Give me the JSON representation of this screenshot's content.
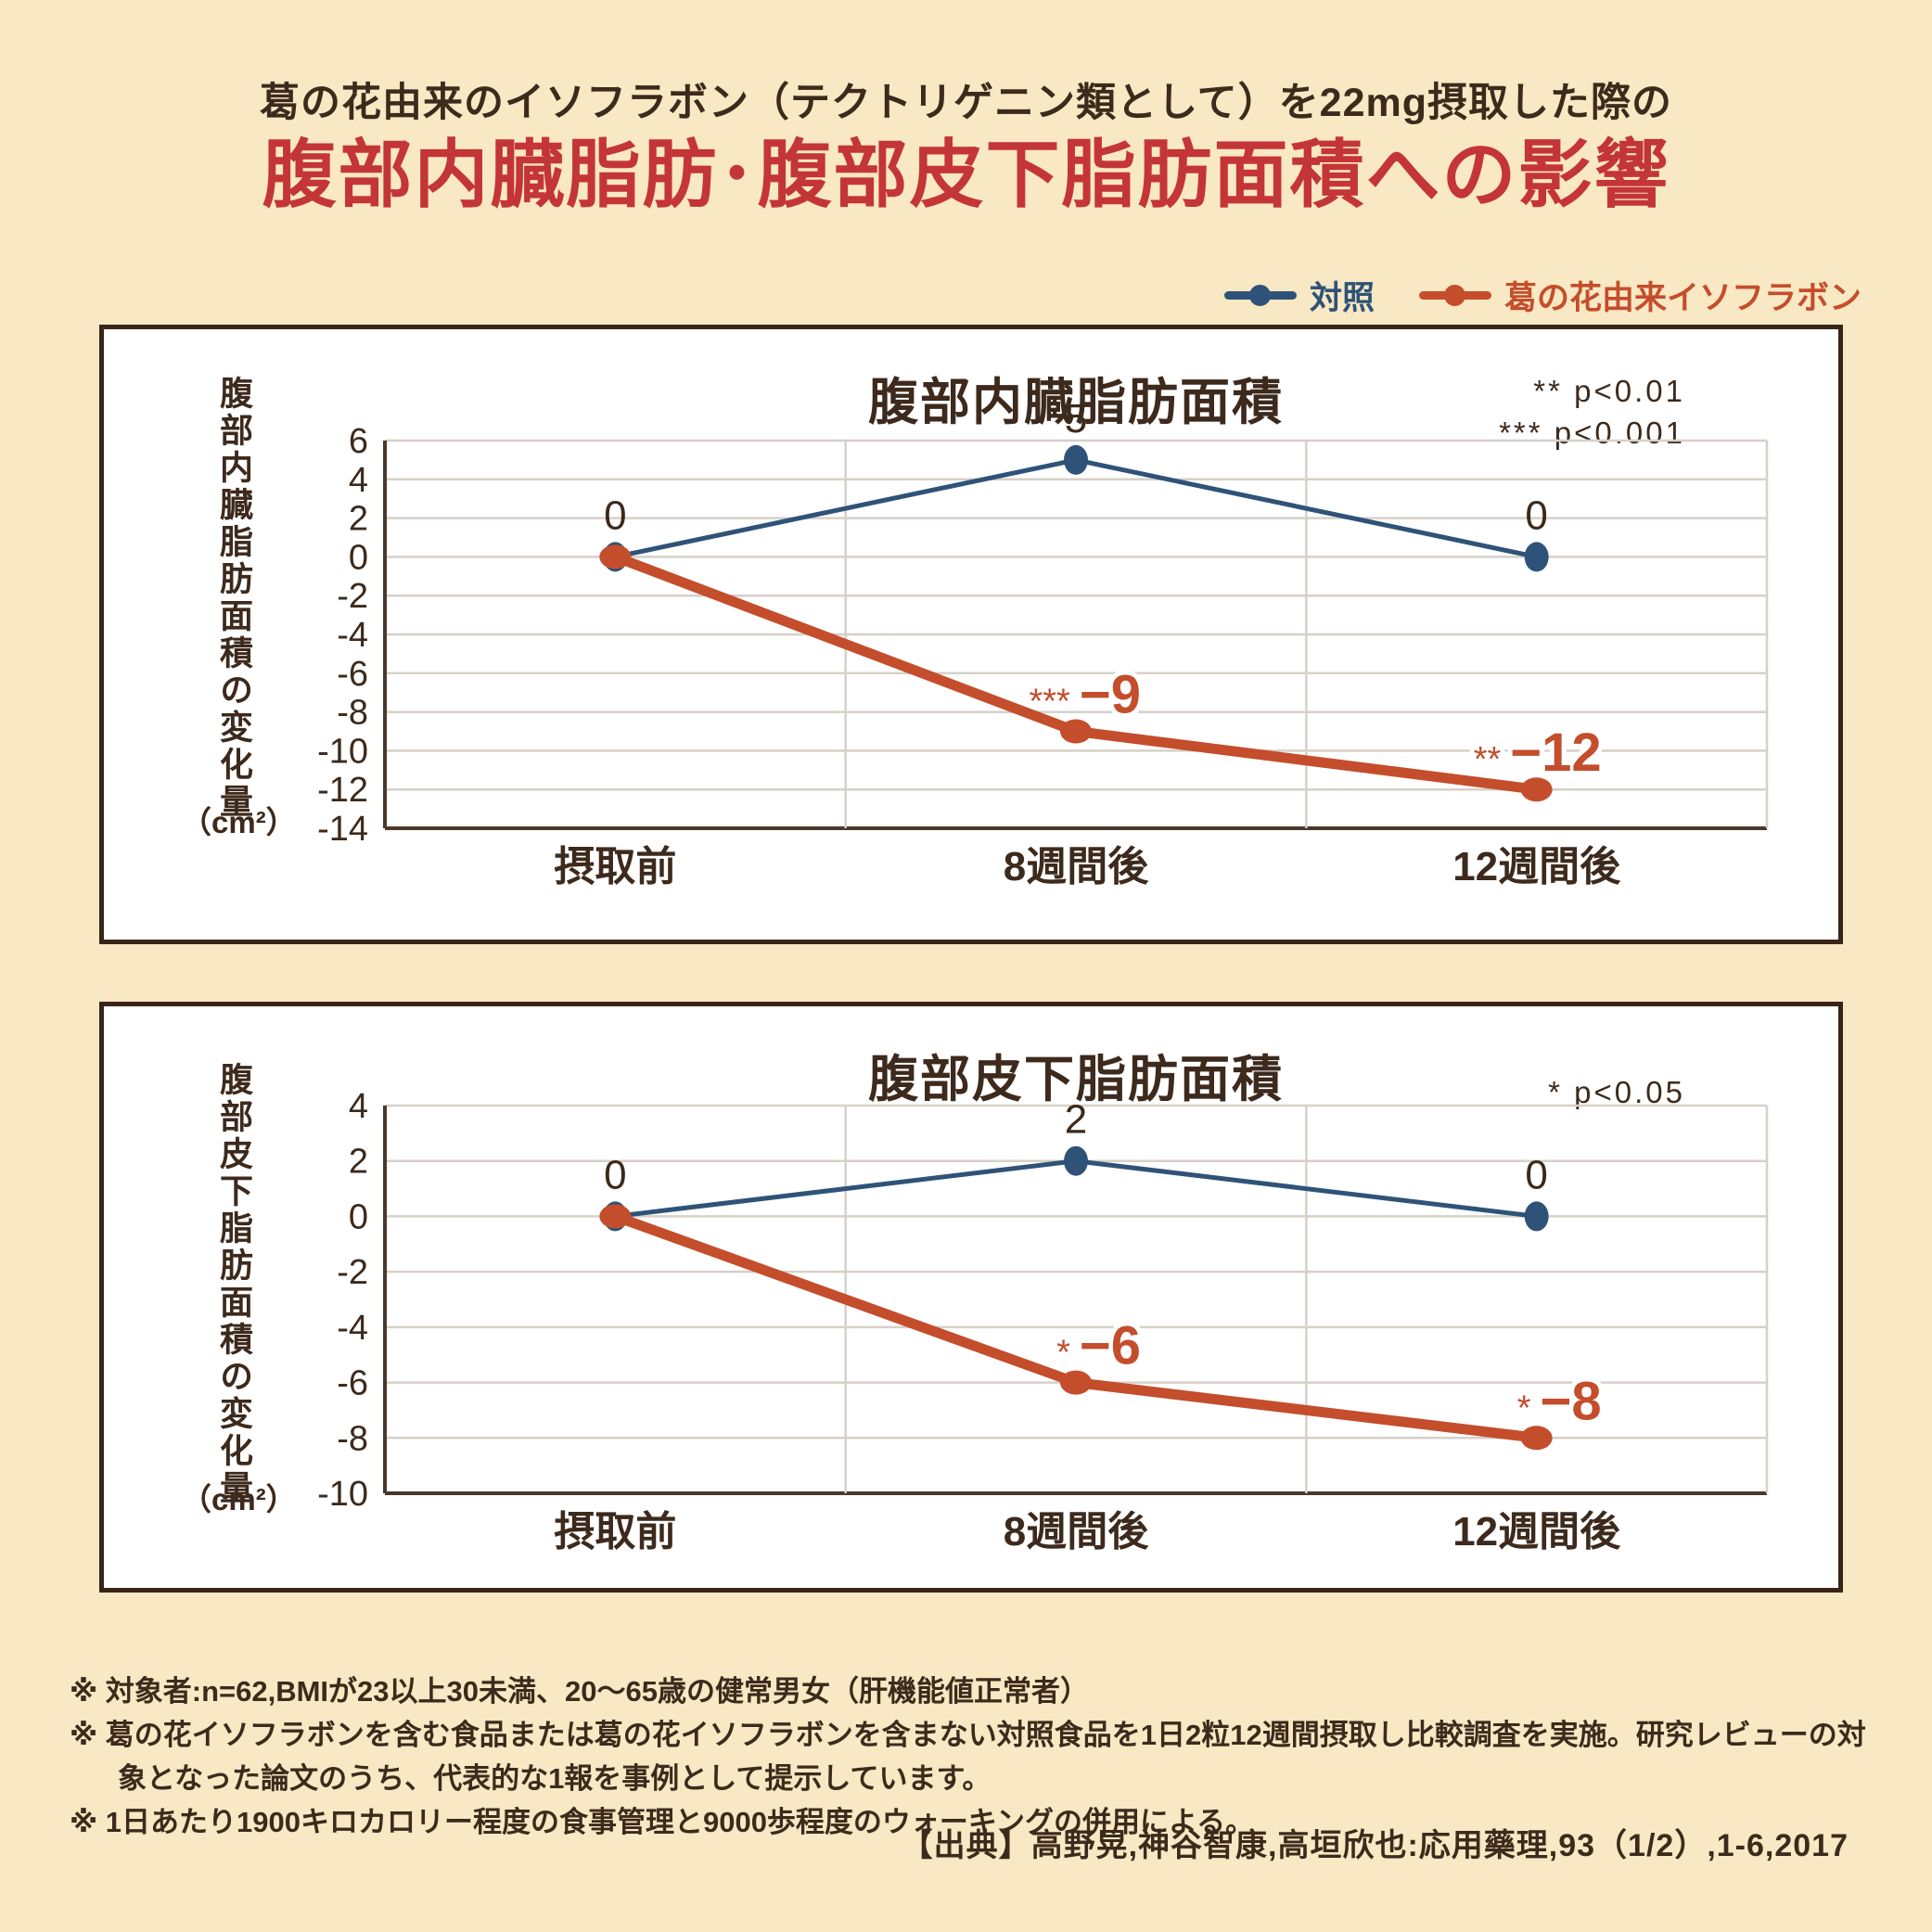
{
  "page": {
    "subtitle": "葛の花由来のイソフラボン（テクトリゲニン類として）を22mg摂取した際の",
    "title": "腹部内臓脂肪･腹部皮下脂肪面積への影響"
  },
  "colors": {
    "background": "#f8e8c3",
    "panel_border": "#3a2418",
    "dark_text": "#3d2a1c",
    "title_red": "#c43537",
    "control_navy": "#2f5378",
    "isoflavone_red": "#c44d2c",
    "gridline": "#d6d0c8",
    "axis": "#4a382c"
  },
  "legend": {
    "series": [
      {
        "label": "対照",
        "color": "#2f5378"
      },
      {
        "label": "葛の花由来イソフラボン",
        "color": "#c44d2c"
      }
    ]
  },
  "chart_data": [
    {
      "type": "line",
      "title": "腹部内臓脂肪面積",
      "ylabel": "腹部内臓脂肪面積の変化量",
      "ylabel_unit": "（cm²）",
      "categories": [
        "摂取前",
        "8週間後",
        "12週間後"
      ],
      "ylim": [
        -14,
        6
      ],
      "ytick_step": 2,
      "grid": true,
      "legend_position": "top-right-above-panels",
      "pvalues": [
        "** p<0.01",
        "*** p<0.001"
      ],
      "series": [
        {
          "name": "対照",
          "color": "#2f5378",
          "values": [
            0,
            5,
            0
          ],
          "labels": [
            "0",
            "5",
            "0"
          ],
          "stars": [
            "",
            "",
            ""
          ]
        },
        {
          "name": "葛の花由来イソフラボン",
          "color": "#c44d2c",
          "values": [
            0,
            -9,
            -12
          ],
          "labels": [
            "",
            "−9",
            "−12"
          ],
          "stars": [
            "",
            "***",
            "**"
          ]
        }
      ]
    },
    {
      "type": "line",
      "title": "腹部皮下脂肪面積",
      "ylabel": "腹部皮下脂肪面積の変化量",
      "ylabel_unit": "（cm²）",
      "categories": [
        "摂取前",
        "8週間後",
        "12週間後"
      ],
      "ylim": [
        -10,
        4
      ],
      "ytick_step": 2,
      "grid": true,
      "pvalues": [
        "* p<0.05"
      ],
      "series": [
        {
          "name": "対照",
          "color": "#2f5378",
          "values": [
            0,
            2,
            0
          ],
          "labels": [
            "0",
            "2",
            "0"
          ],
          "stars": [
            "",
            "",
            ""
          ]
        },
        {
          "name": "葛の花由来イソフラボン",
          "color": "#c44d2c",
          "values": [
            0,
            -6,
            -8
          ],
          "labels": [
            "",
            "−6",
            "−8"
          ],
          "stars": [
            "",
            "*",
            "*"
          ]
        }
      ]
    }
  ],
  "footnotes": {
    "marker": "※",
    "items": [
      "対象者:n=62,BMIが23以上30未満、20〜65歳の健常男女（肝機能値正常者）",
      "葛の花イソフラボンを含む食品または葛の花イソフラボンを含まない対照食品を1日2粒12週間摂取し比較調査を実施。研究レビューの対象となった論文のうち、代表的な1報を事例として提示しています。",
      "1日あたり1900キロカロリー程度の食事管理と9000歩程度のウォーキングの併用による。"
    ]
  },
  "source": "【出典】高野晃,神谷智康,高垣欣也:応用藥理,93（1/2）,1-6,2017"
}
